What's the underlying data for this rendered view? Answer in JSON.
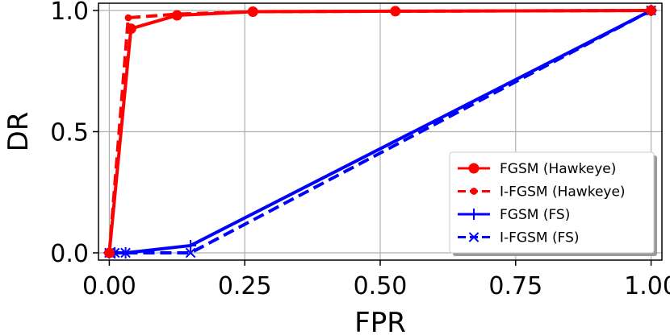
{
  "chart_data": {
    "type": "line",
    "xlabel": "FPR",
    "ylabel": "DR",
    "xlim": [
      -0.02,
      1.02
    ],
    "ylim": [
      -0.03,
      1.03
    ],
    "xticks": [
      0.0,
      0.25,
      0.5,
      0.75,
      1.0
    ],
    "xtick_labels": [
      "0.00",
      "0.25",
      "0.50",
      "0.75",
      "1.00"
    ],
    "yticks": [
      0.0,
      0.5,
      1.0
    ],
    "ytick_labels": [
      "0.0",
      "0.5",
      "1.0"
    ],
    "grid": true,
    "legend_position": "lower-right",
    "series": [
      {
        "name": "FGSM (Hawkeye)",
        "color": "#ff0000",
        "line_style": "solid",
        "marker": "circle",
        "x": [
          0.0,
          0.04,
          0.125,
          0.265,
          0.528,
          1.0
        ],
        "y": [
          0.0,
          0.925,
          0.98,
          0.995,
          0.997,
          1.0
        ]
      },
      {
        "name": "I-FGSM (Hawkeye)",
        "color": "#ff0000",
        "line_style": "dashed",
        "marker": "point",
        "x": [
          0.0,
          0.035,
          0.125,
          0.265,
          0.528,
          1.0
        ],
        "y": [
          0.0,
          0.97,
          0.985,
          0.995,
          0.997,
          1.0
        ]
      },
      {
        "name": "FGSM (FS)",
        "color": "#0000ff",
        "line_style": "solid",
        "marker": "plus",
        "x": [
          0.0,
          0.01,
          0.03,
          0.15,
          1.0
        ],
        "y": [
          0.0,
          0.0,
          0.0,
          0.03,
          1.0
        ]
      },
      {
        "name": "I-FGSM (FS)",
        "color": "#0000ff",
        "line_style": "dashed",
        "marker": "x",
        "x": [
          0.0,
          0.01,
          0.03,
          0.15,
          1.0
        ],
        "y": [
          0.0,
          0.0,
          0.0,
          0.0,
          1.0
        ]
      }
    ]
  }
}
